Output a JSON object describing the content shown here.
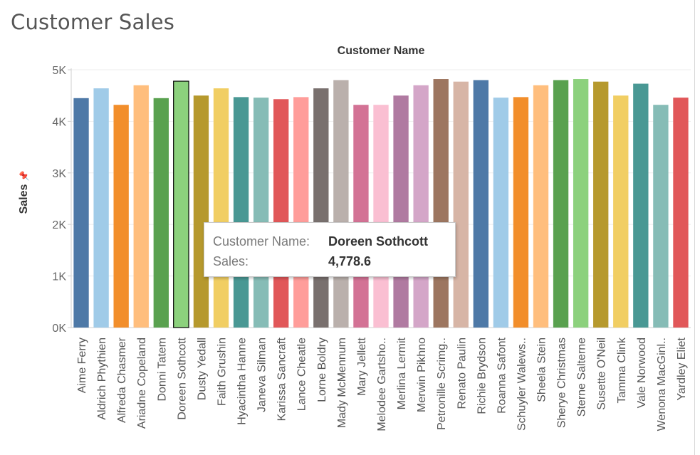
{
  "title": "Customer Sales",
  "tooltip": {
    "name_label": "Customer Name:",
    "name_value": "Doreen Sothcott",
    "sales_label": "Sales:",
    "sales_value": "4,778.6"
  },
  "highlighted_index": 5,
  "chart_data": {
    "type": "bar",
    "title": "Customer Sales",
    "column_header": "Customer Name",
    "ylabel": "Sales",
    "ylim": [
      0,
      5000
    ],
    "yticks": [
      0,
      1000,
      2000,
      3000,
      4000,
      5000
    ],
    "ytick_labels": [
      "0K",
      "1K",
      "2K",
      "3K",
      "4K",
      "5K"
    ],
    "grid": true,
    "categories": [
      "Aime Ferry",
      "Aldrich Phythien",
      "Alfreda Chasmer",
      "Ariadne Copeland",
      "Donni Tatem",
      "Doreen Sothcott",
      "Dusty Yedall",
      "Faith Grushin",
      "Hyacintha Hanne",
      "Janeva Silman",
      "Karissa Sancraft",
      "Lance Cheatle",
      "Lorne Boldry",
      "Mady McMennum",
      "Mary Jellett",
      "Melodee Gartsho..",
      "Merlina Lermit",
      "Merwin Pikhno",
      "Petronille Scrimg..",
      "Renato Paulin",
      "Richie Brydson",
      "Roanna Safont",
      "Schuyler Walews..",
      "Sheela Stein",
      "Sherye Christmas",
      "Sterne Salterne",
      "Susette O'Neil",
      "Tamma Clink",
      "Vale Norwood",
      "Wenona MacGinl..",
      "Yardley Eliet"
    ],
    "values": [
      4450,
      4640,
      4320,
      4700,
      4450,
      4778.6,
      4500,
      4640,
      4470,
      4460,
      4430,
      4470,
      4640,
      4800,
      4320,
      4320,
      4500,
      4700,
      4820,
      4770,
      4800,
      4460,
      4470,
      4700,
      4800,
      4820,
      4770,
      4500,
      4730,
      4320,
      4460
    ],
    "colors": [
      "#4e79a7",
      "#a0cbe8",
      "#f28e2b",
      "#ffbe7d",
      "#59a14f",
      "#8cd17d",
      "#b6992d",
      "#f1ce63",
      "#499894",
      "#86bcb6",
      "#e15759",
      "#ff9d9a",
      "#79706e",
      "#bab0ac",
      "#d37295",
      "#fabfd2",
      "#b07aa1",
      "#d4a6c8",
      "#9d7660",
      "#d7b5a6",
      "#4e79a7",
      "#a0cbe8",
      "#f28e2b",
      "#ffbe7d",
      "#59a14f",
      "#8cd17d",
      "#b6992d",
      "#f1ce63",
      "#499894",
      "#86bcb6",
      "#e15759"
    ]
  }
}
